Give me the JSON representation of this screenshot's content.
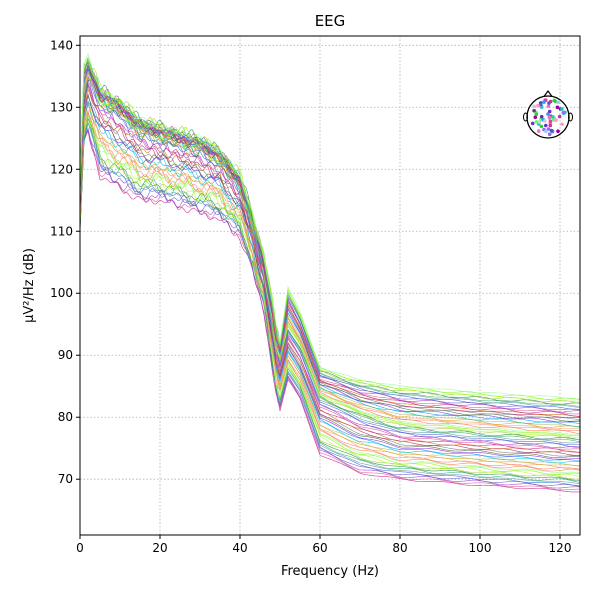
{
  "chart_data": {
    "type": "line",
    "title": "EEG",
    "xlabel": "Frequency (Hz)",
    "ylabel": "µV²/Hz (dB)",
    "xlim": [
      0,
      125
    ],
    "ylim": [
      61,
      141.5
    ],
    "xticks": [
      0,
      20,
      40,
      60,
      80,
      100,
      120
    ],
    "yticks": [
      70,
      80,
      90,
      100,
      110,
      120,
      130,
      140
    ],
    "grid": true,
    "grid_style": "dotted",
    "legend": "none",
    "inset": "sensor-topomap top-right",
    "n_series": 60,
    "envelope": {
      "x": [
        0,
        1,
        2,
        5,
        10,
        15,
        20,
        25,
        30,
        35,
        40,
        43,
        46,
        48,
        49,
        50,
        52,
        55,
        60,
        70,
        80,
        100,
        125
      ],
      "high": [
        118,
        137,
        138,
        133,
        131,
        128,
        127,
        126,
        125,
        123,
        119,
        113,
        106,
        99,
        95,
        92,
        101,
        97,
        88,
        86,
        85,
        84,
        83
      ],
      "mid": [
        115,
        132,
        135,
        131,
        129,
        126,
        125,
        124,
        123,
        121,
        117,
        111,
        103,
        95,
        91,
        89,
        94,
        91,
        83,
        80,
        78,
        77,
        76
      ],
      "low": [
        110,
        124,
        126,
        119,
        117,
        115,
        115,
        114,
        113,
        112,
        109,
        104,
        97,
        88,
        84,
        81,
        86,
        83,
        74,
        71,
        70,
        69,
        68
      ]
    },
    "series_colors": [
      "#c81e8a",
      "#e0569b",
      "#9b3fc9",
      "#6a5acd",
      "#4169e1",
      "#5f9ea0",
      "#3cb371",
      "#2e8b57",
      "#9acd32",
      "#adff2f",
      "#7cfc00",
      "#98fb98",
      "#ff7f50",
      "#fa8072",
      "#f4a460",
      "#daa520",
      "#bdb76b",
      "#00ced1",
      "#1e90ff",
      "#8a2be2",
      "#556b2f",
      "#708090",
      "#b03060",
      "#d2691e"
    ]
  }
}
